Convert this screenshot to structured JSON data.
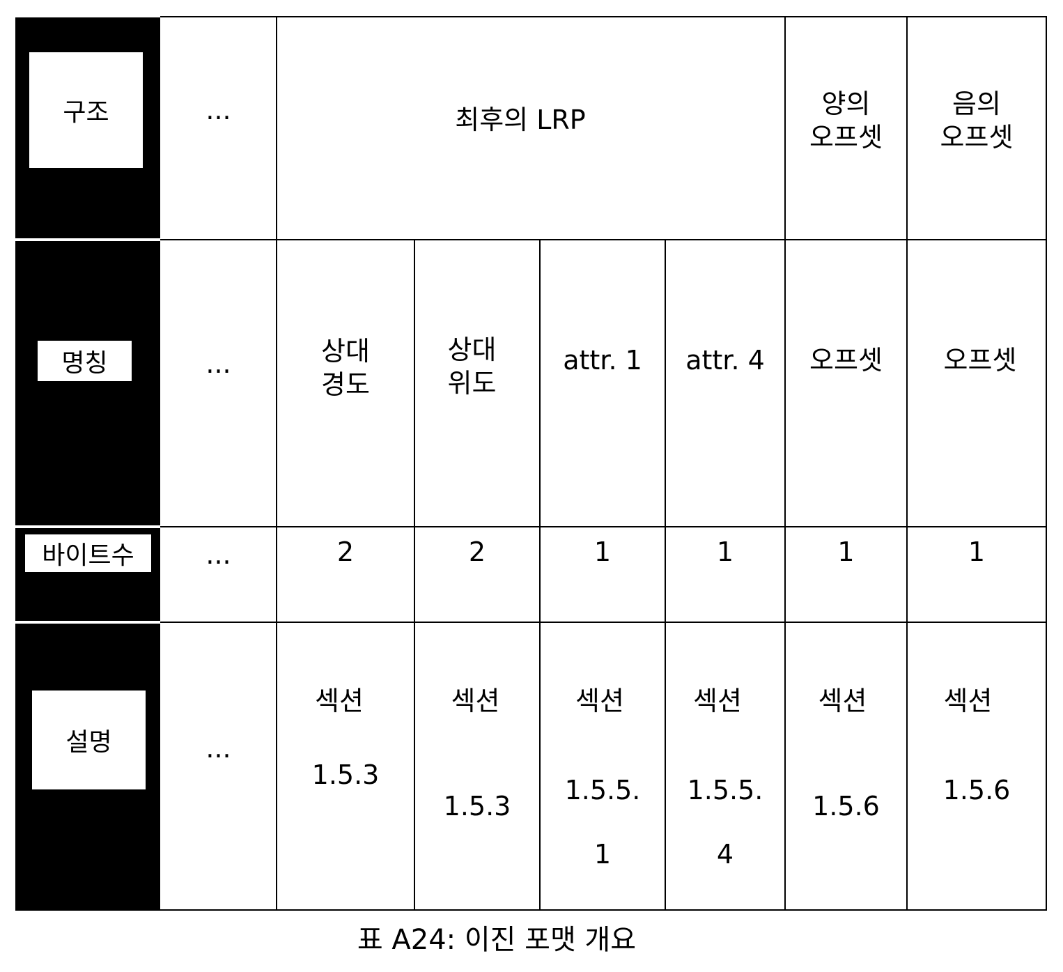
{
  "row_labels": {
    "structure": "구조",
    "name": "명칭",
    "bytes": "바이트수",
    "description": "설명"
  },
  "structure_row": {
    "ellipsis": "...",
    "last_lrp": "최후의 LRP",
    "pos_offset": "양의\n오프셋",
    "neg_offset": "음의\n오프셋"
  },
  "name_row": {
    "ellipsis": "...",
    "cells": [
      "상대\n경도",
      "상대\n위도",
      "attr. 1",
      "attr. 4",
      "오프셋",
      "오프셋"
    ]
  },
  "bytes_row": {
    "ellipsis": "...",
    "cells": [
      "2",
      "2",
      "1",
      "1",
      "1",
      "1"
    ]
  },
  "description_row": {
    "ellipsis": "...",
    "section": "섹션",
    "cells": [
      "1.5.3",
      "1.5.3",
      "1.5.5.\n1",
      "1.5.5.\n4",
      "1.5.6",
      "1.5.6"
    ]
  },
  "caption": "표 A24: 이진 포맷 개요"
}
